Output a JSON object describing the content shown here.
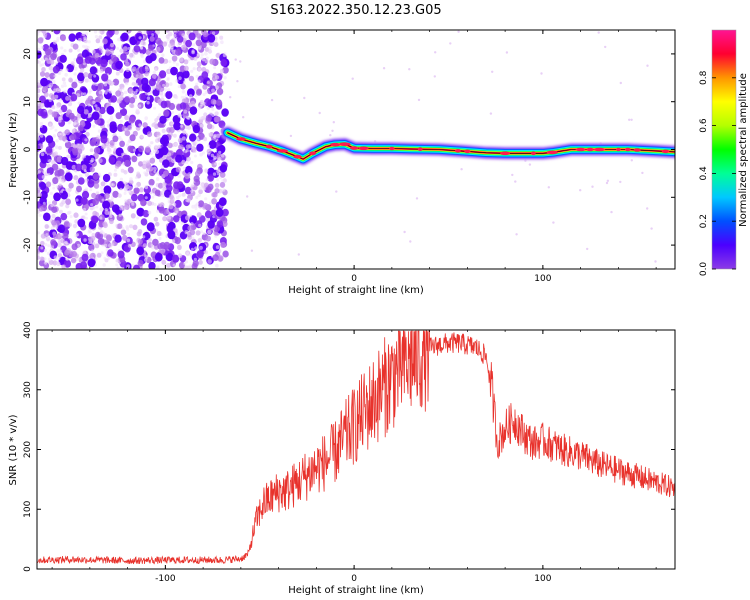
{
  "title": "S163.2022.350.12.23.G05",
  "chart_data": [
    {
      "type": "heatmap",
      "xlabel": "Height of straight line (km)",
      "ylabel": "Frequency (Hz)",
      "xlim": [
        -168,
        170
      ],
      "ylim": [
        -25,
        25
      ],
      "xticks": [
        -100,
        0,
        100
      ],
      "yticks": [
        -20,
        -10,
        0,
        10,
        20
      ],
      "colorbar": {
        "label": "Normalized spectral amplitude",
        "range": [
          0.0,
          1.0
        ],
        "ticks": [
          0.0,
          0.2,
          0.4,
          0.6,
          0.8
        ],
        "colors": [
          "#ffffff",
          "#e6c8f5",
          "#8c3ce6",
          "#4b00ff",
          "#0050ff",
          "#00e6ff",
          "#00ff50",
          "#b4ff00",
          "#ffff00",
          "#ff8c00",
          "#ff0030",
          "#ff1493"
        ]
      },
      "noise_region_x": [
        -168,
        -68
      ],
      "ridge": {
        "x": [
          -67,
          -60,
          -52,
          -45,
          -38,
          -30,
          -27,
          -22,
          -15,
          -10,
          -5,
          0,
          10,
          20,
          30,
          45,
          60,
          70,
          80,
          90,
          100,
          105,
          115,
          130,
          145,
          160,
          170
        ],
        "y": [
          3.5,
          2.2,
          1.3,
          0.6,
          -0.3,
          -1.5,
          -2.0,
          -0.8,
          0.6,
          1.0,
          1.1,
          0.3,
          0.2,
          0.2,
          0.1,
          0.0,
          -0.4,
          -0.7,
          -0.8,
          -0.8,
          -0.8,
          -0.6,
          0.0,
          0.0,
          0.0,
          -0.3,
          -0.5
        ]
      }
    },
    {
      "type": "line",
      "xlabel": "Height of straight line (km)",
      "ylabel": "SNR (10 * v/v)",
      "xlim": [
        -168,
        170
      ],
      "ylim": [
        0,
        400
      ],
      "xticks": [
        -100,
        0,
        100
      ],
      "yticks": [
        0,
        100,
        200,
        300,
        400
      ],
      "series": [
        {
          "color": "#e8322c",
          "x": [
            -168,
            -150,
            -120,
            -90,
            -70,
            -60,
            -56,
            -52,
            -48,
            -44,
            -40,
            -36,
            -32,
            -28,
            -24,
            -20,
            -15,
            -10,
            -5,
            0,
            5,
            10,
            15,
            20,
            25,
            30,
            35,
            40,
            45,
            50,
            55,
            60,
            65,
            70,
            73,
            76,
            80,
            85,
            90,
            95,
            100,
            110,
            120,
            130,
            140,
            150,
            160,
            170
          ],
          "values": [
            15,
            16,
            14,
            15,
            15,
            17,
            25,
            80,
            110,
            120,
            130,
            130,
            140,
            150,
            160,
            170,
            180,
            195,
            220,
            240,
            260,
            280,
            300,
            320,
            340,
            350,
            360,
            370,
            375,
            378,
            378,
            375,
            370,
            355,
            300,
            210,
            235,
            250,
            225,
            210,
            215,
            200,
            190,
            175,
            165,
            155,
            145,
            135
          ]
        }
      ]
    }
  ]
}
